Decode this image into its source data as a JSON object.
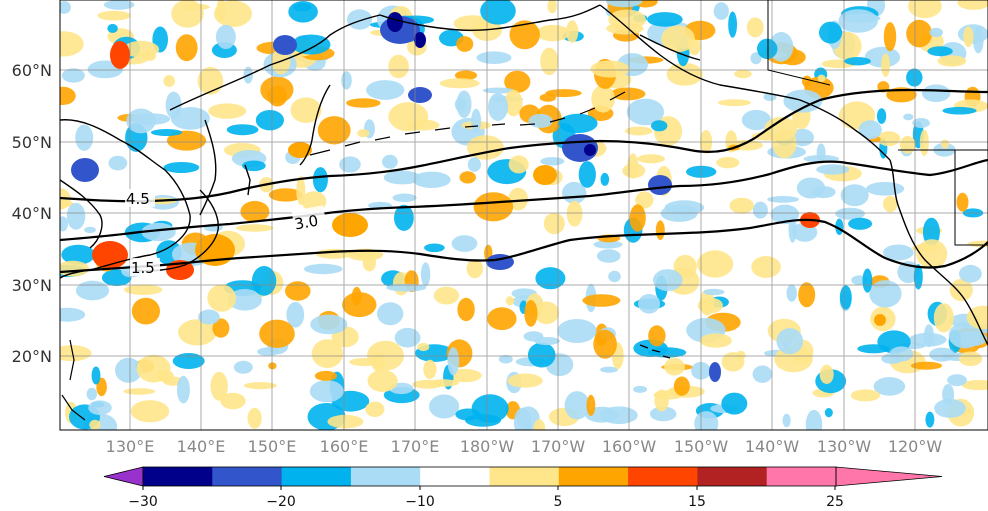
{
  "map": {
    "lat_labels": [
      "60°N",
      "50°N",
      "40°N",
      "30°N",
      "20°N"
    ],
    "lon_labels": [
      "130°E",
      "140°E",
      "150°E",
      "160°E",
      "170°E",
      "180°W",
      "170°W",
      "160°W",
      "150°W",
      "140°W",
      "130°W",
      "120°W"
    ],
    "contour_labels": [
      "4.5",
      "3.0",
      "1.5"
    ]
  },
  "colorbar": {
    "tick_labels": [
      "−30",
      "−20",
      "−10",
      "5",
      "15",
      "25"
    ],
    "colors": [
      "#9932cc",
      "#00008b",
      "#3355cc",
      "#00b2ee",
      "#aadcf5",
      "#ffffff",
      "#ffe68a",
      "#ffa500",
      "#ff4500",
      "#b22222",
      "#ff77aa"
    ]
  }
}
